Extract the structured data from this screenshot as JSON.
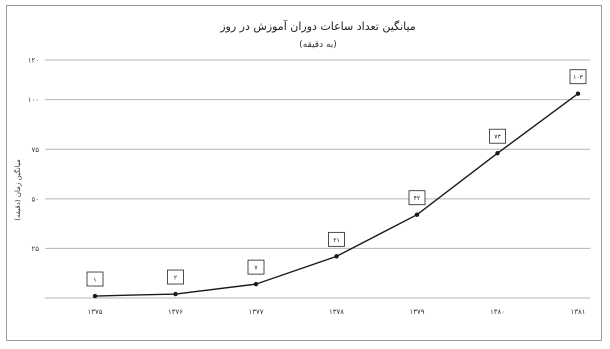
{
  "chart_data": {
    "type": "line",
    "title": "میانگین تعداد ساعات دوران آموزش در روز",
    "subtitle": "(به دقیقه)",
    "ylabel": "میانگین زمان (دقیقه)",
    "xlabel": "",
    "categories": [
      "۱۳۷۵",
      "۱۳۷۶",
      "۱۳۷۷",
      "۱۳۷۸",
      "۱۳۷۹",
      "۱۳۸۰",
      "۱۳۸۱"
    ],
    "values": [
      1,
      2,
      7,
      21,
      42,
      73,
      103
    ],
    "data_labels": [
      "۱",
      "۲",
      "۷",
      "۲۱",
      "۴۲",
      "۷۳",
      "۱۰۳"
    ],
    "ylim": [
      0,
      120
    ],
    "yticks": [
      0,
      25,
      50,
      75,
      100,
      120
    ],
    "ytick_labels": [
      "",
      "۲۵",
      "۵۰",
      "۷۵",
      "۱۰۰",
      "۱۲۰"
    ],
    "grid": true,
    "legend": "none",
    "colors": {
      "line": "#1a1a1a",
      "grid": "#b5b5b5",
      "marker": "#1a1a1a"
    }
  }
}
